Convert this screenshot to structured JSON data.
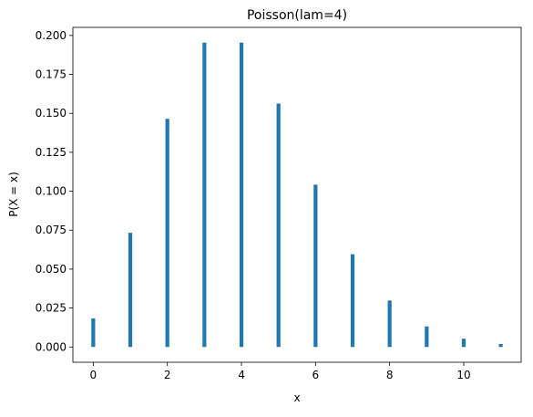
{
  "chart_data": {
    "type": "bar",
    "title": "Poisson(lam=4)",
    "xlabel": "x",
    "ylabel": "P(X = x)",
    "x": [
      0,
      1,
      2,
      3,
      4,
      5,
      6,
      7,
      8,
      9,
      10,
      11
    ],
    "values": [
      0.0183,
      0.0733,
      0.1465,
      0.1954,
      0.1954,
      0.1563,
      0.1042,
      0.0595,
      0.0298,
      0.0132,
      0.0053,
      0.0019
    ],
    "xlim": [
      -0.55,
      11.55
    ],
    "ylim": [
      -0.0098,
      0.2052
    ],
    "xticks": [
      0,
      2,
      4,
      6,
      8,
      10
    ],
    "xtick_labels": [
      "0",
      "2",
      "4",
      "6",
      "8",
      "10"
    ],
    "yticks": [
      0.0,
      0.025,
      0.05,
      0.075,
      0.1,
      0.125,
      0.15,
      0.175,
      0.2
    ],
    "ytick_labels": [
      "0.000",
      "0.025",
      "0.050",
      "0.075",
      "0.100",
      "0.125",
      "0.150",
      "0.175",
      "0.200"
    ],
    "grid": false,
    "bar_color": "#1f77b4"
  }
}
